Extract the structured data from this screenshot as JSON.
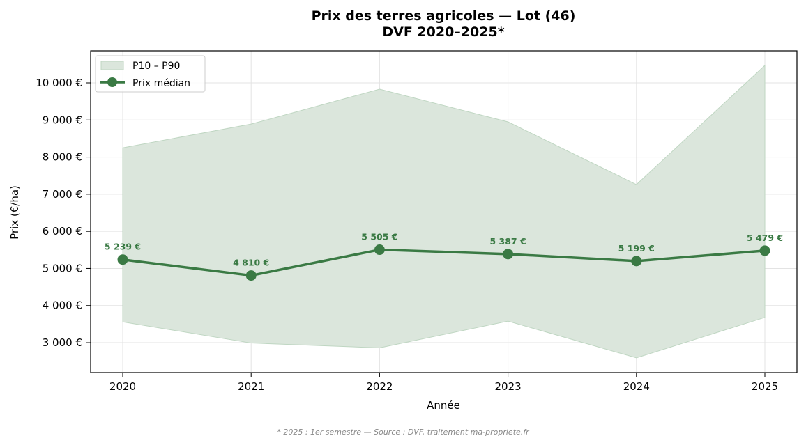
{
  "chart_data": {
    "type": "line",
    "title": "Prix des terres agricoles — Lot (46)",
    "subtitle": "DVF 2020–2025*",
    "xlabel": "Année",
    "ylabel": "Prix (€/ha)",
    "categories": [
      "2020",
      "2021",
      "2022",
      "2023",
      "2024",
      "2025"
    ],
    "series": [
      {
        "name": "Prix médian",
        "type": "line",
        "color": "#3a7a44",
        "values": [
          5239,
          4810,
          5505,
          5387,
          5199,
          5479
        ],
        "labels": [
          "5 239 €",
          "4 810 €",
          "5 505 €",
          "5 387 €",
          "5 199 €",
          "5 479 €"
        ]
      },
      {
        "name": "P10 – P90",
        "type": "area-band",
        "color": "#dbe6dc",
        "lower": [
          3560,
          2990,
          2860,
          3580,
          2590,
          3680
        ],
        "upper": [
          8250,
          8890,
          9830,
          8950,
          7260,
          10470
        ]
      }
    ],
    "yticks": [
      3000,
      4000,
      5000,
      6000,
      7000,
      8000,
      9000,
      10000
    ],
    "ytick_labels": [
      "3 000 €",
      "4 000 €",
      "5 000 €",
      "6 000 €",
      "7 000 €",
      "8 000 €",
      "9 000 €",
      "10 000 €"
    ],
    "ylim": [
      2150,
      10850
    ],
    "grid": true,
    "legend": {
      "position": "upper left",
      "entries": [
        "P10 – P90",
        "Prix médian"
      ]
    },
    "footnote": "* 2025 : 1er semestre — Source : DVF, traitement ma-propriete.fr"
  }
}
